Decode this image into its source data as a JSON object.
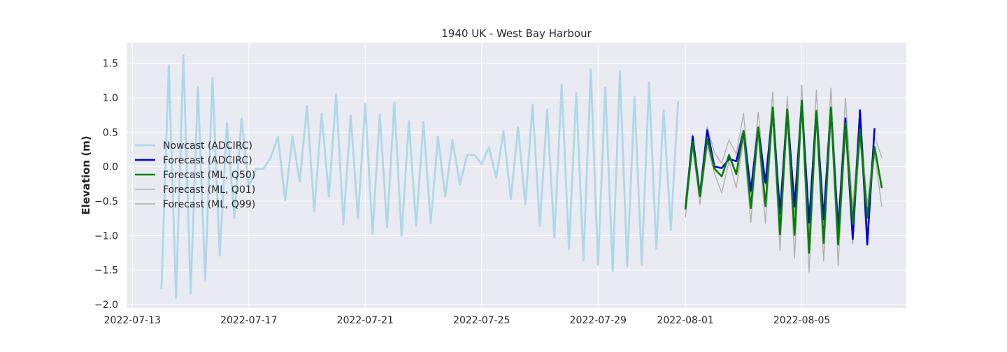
{
  "chart_data": {
    "type": "line",
    "title": "1940 UK - West Bay Harbour",
    "xlabel": "",
    "ylabel": "Elevation (m)",
    "xlim": [
      "2022-07-13",
      "2022-08-08"
    ],
    "ylim": [
      -2.05,
      1.8
    ],
    "grid": true,
    "legend_position": "center-left",
    "x_ticks": [
      "2022-07-13",
      "2022-07-17",
      "2022-07-21",
      "2022-07-25",
      "2022-07-29",
      "2022-08-01",
      "2022-08-05"
    ],
    "y_ticks": [
      -2.0,
      -1.5,
      -1.0,
      -0.5,
      0.0,
      0.5,
      1.0,
      1.5
    ],
    "y_tick_labels": [
      "−2.0",
      "−1.5",
      "−1.0",
      "−0.5",
      "0.0",
      "0.5",
      "1.0",
      "1.5"
    ],
    "series": [
      {
        "name": "Nowcast (ADCIRC)",
        "color": "#add8e6",
        "width": 2.8,
        "x": [
          "2022-07-14 00:00",
          "2022-07-14 06:00",
          "2022-07-14 12:00",
          "2022-07-14 18:00",
          "2022-07-15 00:00",
          "2022-07-15 06:00",
          "2022-07-15 12:00",
          "2022-07-15 18:00",
          "2022-07-16 00:00",
          "2022-07-16 06:00",
          "2022-07-16 12:00",
          "2022-07-16 18:00",
          "2022-07-17 00:00",
          "2022-07-17 06:00",
          "2022-07-17 12:00",
          "2022-07-17 18:00",
          "2022-07-18 00:00",
          "2022-07-18 06:00",
          "2022-07-18 12:00",
          "2022-07-18 18:00",
          "2022-07-19 00:00",
          "2022-07-19 06:00",
          "2022-07-19 12:00",
          "2022-07-19 18:00",
          "2022-07-20 00:00",
          "2022-07-20 06:00",
          "2022-07-20 12:00",
          "2022-07-20 18:00",
          "2022-07-21 00:00",
          "2022-07-21 06:00",
          "2022-07-21 12:00",
          "2022-07-21 18:00",
          "2022-07-22 00:00",
          "2022-07-22 06:00",
          "2022-07-22 12:00",
          "2022-07-22 18:00",
          "2022-07-23 00:00",
          "2022-07-23 06:00",
          "2022-07-23 12:00",
          "2022-07-23 18:00",
          "2022-07-24 00:00",
          "2022-07-24 06:00",
          "2022-07-24 12:00",
          "2022-07-24 18:00",
          "2022-07-25 00:00",
          "2022-07-25 06:00",
          "2022-07-25 12:00",
          "2022-07-25 18:00",
          "2022-07-26 00:00",
          "2022-07-26 06:00",
          "2022-07-26 12:00",
          "2022-07-26 18:00",
          "2022-07-27 00:00",
          "2022-07-27 06:00",
          "2022-07-27 12:00",
          "2022-07-27 18:00",
          "2022-07-28 00:00",
          "2022-07-28 06:00",
          "2022-07-28 12:00",
          "2022-07-28 18:00",
          "2022-07-29 00:00",
          "2022-07-29 06:00",
          "2022-07-29 12:00",
          "2022-07-29 18:00",
          "2022-07-30 00:00",
          "2022-07-30 06:00",
          "2022-07-30 12:00",
          "2022-07-30 18:00",
          "2022-07-31 00:00",
          "2022-07-31 06:00",
          "2022-07-31 12:00",
          "2022-07-31 18:00"
        ],
        "y": [
          -1.77,
          1.47,
          -1.91,
          1.62,
          -1.84,
          1.16,
          -1.64,
          1.29,
          -1.29,
          0.63,
          -0.75,
          0.7,
          -0.28,
          -0.03,
          -0.03,
          0.13,
          0.43,
          -0.49,
          0.44,
          -0.22,
          0.88,
          -0.65,
          0.77,
          -0.43,
          1.05,
          -0.83,
          0.74,
          -0.75,
          0.91,
          -0.98,
          0.76,
          -0.88,
          0.93,
          -1.0,
          0.66,
          -0.86,
          0.65,
          -0.82,
          0.43,
          -0.43,
          0.39,
          -0.26,
          0.17,
          0.17,
          0.04,
          0.28,
          -0.16,
          0.52,
          -0.47,
          0.57,
          -0.55,
          0.9,
          -0.86,
          0.83,
          -1.03,
          1.19,
          -1.2,
          1.07,
          -1.36,
          1.41,
          -1.42,
          1.15,
          -1.51,
          1.39,
          -1.45,
          1.01,
          -1.42,
          1.22,
          -1.19,
          0.82,
          -0.92,
          0.95
        ]
      },
      {
        "name": "Forecast (ADCIRC)",
        "color": "#0000dd",
        "width": 2.6,
        "x": [
          "2022-08-01 00:00",
          "2022-08-01 06:00",
          "2022-08-01 12:00",
          "2022-08-01 18:00",
          "2022-08-02 00:00",
          "2022-08-02 06:00",
          "2022-08-02 12:00",
          "2022-08-02 18:00",
          "2022-08-03 00:00",
          "2022-08-03 06:00",
          "2022-08-03 12:00",
          "2022-08-03 18:00",
          "2022-08-04 00:00",
          "2022-08-04 06:00",
          "2022-08-04 12:00",
          "2022-08-04 18:00",
          "2022-08-05 00:00",
          "2022-08-05 06:00",
          "2022-08-05 12:00",
          "2022-08-05 18:00",
          "2022-08-06 00:00",
          "2022-08-06 06:00",
          "2022-08-06 12:00",
          "2022-08-06 18:00",
          "2022-08-07 00:00",
          "2022-08-07 06:00",
          "2022-08-07 12:00",
          "2022-08-07 18:00"
        ],
        "y": [
          -0.62,
          0.44,
          -0.42,
          0.53,
          0.0,
          -0.02,
          0.11,
          0.08,
          0.52,
          -0.35,
          0.56,
          -0.23,
          0.82,
          -0.68,
          0.82,
          -0.58,
          0.93,
          -0.81,
          0.8,
          -0.76,
          0.84,
          -0.92,
          0.7,
          -1.05,
          0.82,
          -1.13,
          0.56,
          null
        ]
      },
      {
        "name": "Forecast (ML, Q50)",
        "color": "#008000",
        "width": 2.6,
        "x": [
          "2022-08-01 00:00",
          "2022-08-01 06:00",
          "2022-08-01 12:00",
          "2022-08-01 18:00",
          "2022-08-02 00:00",
          "2022-08-02 06:00",
          "2022-08-02 12:00",
          "2022-08-02 18:00",
          "2022-08-03 00:00",
          "2022-08-03 06:00",
          "2022-08-03 12:00",
          "2022-08-03 18:00",
          "2022-08-04 00:00",
          "2022-08-04 06:00",
          "2022-08-04 12:00",
          "2022-08-04 18:00",
          "2022-08-05 00:00",
          "2022-08-05 06:00",
          "2022-08-05 12:00",
          "2022-08-05 18:00",
          "2022-08-06 00:00",
          "2022-08-06 06:00",
          "2022-08-06 12:00",
          "2022-08-06 18:00",
          "2022-08-07 00:00",
          "2022-08-07 06:00",
          "2022-08-07 12:00",
          "2022-08-07 18:00"
        ],
        "y": [
          -0.62,
          0.36,
          -0.43,
          0.4,
          -0.03,
          -0.14,
          0.17,
          -0.11,
          0.52,
          -0.6,
          0.57,
          -0.57,
          0.86,
          -0.98,
          0.83,
          -0.99,
          0.96,
          -1.25,
          0.81,
          -1.11,
          0.86,
          -1.13,
          0.63,
          -0.83,
          0.54,
          -0.74,
          0.29,
          -0.31
        ]
      },
      {
        "name": "Forecast (ML, Q01)",
        "color": "#b0b0b0",
        "width": 1.4,
        "x": [
          "2022-08-01 00:00",
          "2022-08-01 06:00",
          "2022-08-01 12:00",
          "2022-08-01 18:00",
          "2022-08-02 00:00",
          "2022-08-02 06:00",
          "2022-08-02 12:00",
          "2022-08-02 18:00",
          "2022-08-03 00:00",
          "2022-08-03 06:00",
          "2022-08-03 12:00",
          "2022-08-03 18:00",
          "2022-08-04 00:00",
          "2022-08-04 06:00",
          "2022-08-04 12:00",
          "2022-08-04 18:00",
          "2022-08-05 00:00",
          "2022-08-05 06:00",
          "2022-08-05 12:00",
          "2022-08-05 18:00",
          "2022-08-06 00:00",
          "2022-08-06 06:00",
          "2022-08-06 12:00",
          "2022-08-06 18:00",
          "2022-08-07 00:00",
          "2022-08-07 06:00",
          "2022-08-07 12:00",
          "2022-08-07 18:00"
        ],
        "y": [
          -0.74,
          0.28,
          -0.55,
          0.29,
          -0.1,
          -0.38,
          0.08,
          -0.31,
          0.41,
          -0.81,
          0.45,
          -0.82,
          0.73,
          -1.22,
          0.7,
          -1.33,
          0.84,
          -1.53,
          0.68,
          -1.37,
          0.74,
          -1.43,
          0.5,
          -1.12,
          0.4,
          -0.9,
          0.19,
          -0.58
        ]
      },
      {
        "name": "Forecast (ML, Q99)",
        "color": "#b0b0b0",
        "width": 1.4,
        "x": [
          "2022-08-01 00:00",
          "2022-08-01 06:00",
          "2022-08-01 12:00",
          "2022-08-01 18:00",
          "2022-08-02 00:00",
          "2022-08-02 06:00",
          "2022-08-02 12:00",
          "2022-08-02 18:00",
          "2022-08-03 00:00",
          "2022-08-03 06:00",
          "2022-08-03 12:00",
          "2022-08-03 18:00",
          "2022-08-04 00:00",
          "2022-08-04 06:00",
          "2022-08-04 12:00",
          "2022-08-04 18:00",
          "2022-08-05 00:00",
          "2022-08-05 06:00",
          "2022-08-05 12:00",
          "2022-08-05 18:00",
          "2022-08-06 00:00",
          "2022-08-06 06:00",
          "2022-08-06 12:00",
          "2022-08-06 18:00",
          "2022-08-07 00:00",
          "2022-08-07 06:00",
          "2022-08-07 12:00",
          "2022-08-07 18:00"
        ],
        "y": [
          -0.5,
          0.47,
          -0.33,
          0.58,
          0.2,
          0.05,
          0.39,
          0.18,
          0.77,
          -0.38,
          0.79,
          -0.28,
          1.08,
          -0.67,
          1.02,
          -0.67,
          1.18,
          -0.96,
          1.11,
          -0.83,
          1.14,
          -0.8,
          1.0,
          -0.6,
          0.78,
          -0.55,
          0.44,
          0.13
        ]
      }
    ]
  }
}
